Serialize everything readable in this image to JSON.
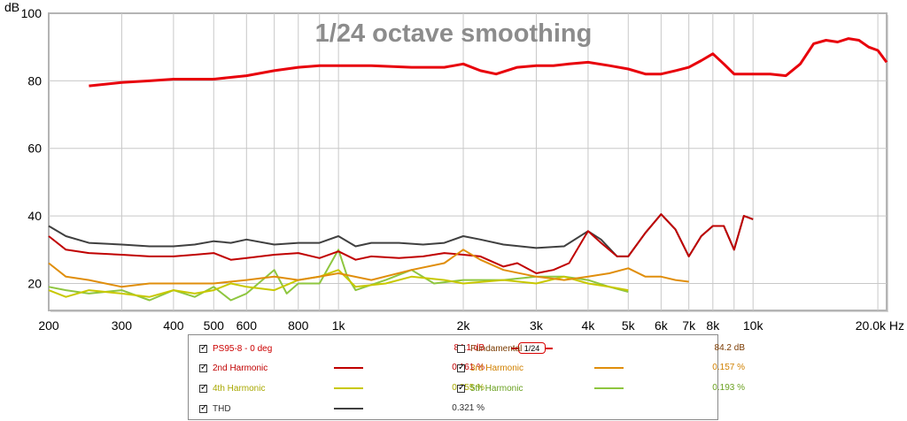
{
  "chart_data": {
    "type": "line",
    "title": "1/24 octave smoothing",
    "ylabel": "dB",
    "xunit": "Hz",
    "xscale": "log",
    "xlim": [
      200,
      21000
    ],
    "ylim": [
      12,
      100
    ],
    "grid": true,
    "yticks": [
      20,
      40,
      60,
      80,
      100
    ],
    "xticks": [
      {
        "v": 200,
        "label": "200"
      },
      {
        "v": 300,
        "label": "300"
      },
      {
        "v": 400,
        "label": "400"
      },
      {
        "v": 500,
        "label": "500"
      },
      {
        "v": 600,
        "label": "600"
      },
      {
        "v": 800,
        "label": "800"
      },
      {
        "v": 1000,
        "label": "1k"
      },
      {
        "v": 2000,
        "label": "2k"
      },
      {
        "v": 3000,
        "label": "3k"
      },
      {
        "v": 4000,
        "label": "4k"
      },
      {
        "v": 5000,
        "label": "5k"
      },
      {
        "v": 6000,
        "label": "6k"
      },
      {
        "v": 7000,
        "label": "7k"
      },
      {
        "v": 8000,
        "label": "8k"
      },
      {
        "v": 10000,
        "label": "10k"
      },
      {
        "v": 20000,
        "label": "20.0k Hz"
      }
    ],
    "series": [
      {
        "name": "PS95-8 - 0 deg",
        "color": "#e8000b",
        "width": 3,
        "points": [
          [
            250,
            78.5
          ],
          [
            300,
            79.5
          ],
          [
            350,
            80
          ],
          [
            400,
            80.5
          ],
          [
            500,
            80.5
          ],
          [
            600,
            81.5
          ],
          [
            700,
            83
          ],
          [
            800,
            84
          ],
          [
            900,
            84.5
          ],
          [
            1000,
            84.5
          ],
          [
            1200,
            84.5
          ],
          [
            1500,
            84
          ],
          [
            1800,
            84
          ],
          [
            2000,
            85
          ],
          [
            2200,
            83
          ],
          [
            2400,
            82
          ],
          [
            2700,
            84
          ],
          [
            3000,
            84.5
          ],
          [
            3300,
            84.5
          ],
          [
            3600,
            85
          ],
          [
            4000,
            85.5
          ],
          [
            4500,
            84.5
          ],
          [
            5000,
            83.5
          ],
          [
            5500,
            82
          ],
          [
            6000,
            82
          ],
          [
            6500,
            83
          ],
          [
            7000,
            84
          ],
          [
            7500,
            86
          ],
          [
            8000,
            88
          ],
          [
            8500,
            85
          ],
          [
            9000,
            82
          ],
          [
            9500,
            82
          ],
          [
            10000,
            82
          ],
          [
            11000,
            82
          ],
          [
            12000,
            81.5
          ],
          [
            13000,
            85
          ],
          [
            14000,
            91
          ],
          [
            15000,
            92
          ],
          [
            16000,
            91.5
          ],
          [
            17000,
            92.5
          ],
          [
            18000,
            92
          ],
          [
            19000,
            90
          ],
          [
            20000,
            89
          ],
          [
            21000,
            85.5
          ]
        ]
      },
      {
        "name": "2nd Harmonic",
        "color": "#c00000",
        "width": 2,
        "points": [
          [
            200,
            34
          ],
          [
            220,
            30
          ],
          [
            250,
            29
          ],
          [
            300,
            28.5
          ],
          [
            350,
            28
          ],
          [
            400,
            28
          ],
          [
            450,
            28.5
          ],
          [
            500,
            29
          ],
          [
            550,
            27
          ],
          [
            600,
            27.5
          ],
          [
            700,
            28.5
          ],
          [
            800,
            29
          ],
          [
            900,
            27.5
          ],
          [
            1000,
            29.5
          ],
          [
            1100,
            27
          ],
          [
            1200,
            28
          ],
          [
            1400,
            27.5
          ],
          [
            1600,
            28
          ],
          [
            1800,
            29
          ],
          [
            2000,
            28.5
          ],
          [
            2200,
            28
          ],
          [
            2500,
            25
          ],
          [
            2700,
            26
          ],
          [
            3000,
            23
          ],
          [
            3300,
            24
          ],
          [
            3600,
            26
          ],
          [
            4000,
            35.5
          ],
          [
            4300,
            32
          ],
          [
            4700,
            28
          ],
          [
            5000,
            28
          ],
          [
            5500,
            35
          ],
          [
            6000,
            40.5
          ],
          [
            6500,
            36
          ],
          [
            7000,
            28
          ],
          [
            7500,
            34
          ],
          [
            8000,
            37
          ],
          [
            8500,
            37
          ],
          [
            9000,
            30
          ],
          [
            9500,
            40
          ],
          [
            10000,
            39
          ]
        ]
      },
      {
        "name": "3rd Harmonic",
        "color": "#e08e0b",
        "width": 2,
        "points": [
          [
            200,
            26
          ],
          [
            220,
            22
          ],
          [
            250,
            21
          ],
          [
            300,
            19
          ],
          [
            350,
            20
          ],
          [
            400,
            20
          ],
          [
            500,
            20
          ],
          [
            600,
            21
          ],
          [
            700,
            22
          ],
          [
            800,
            21
          ],
          [
            900,
            22
          ],
          [
            1000,
            23
          ],
          [
            1200,
            21
          ],
          [
            1500,
            24
          ],
          [
            1800,
            26
          ],
          [
            2000,
            30
          ],
          [
            2200,
            27
          ],
          [
            2500,
            24
          ],
          [
            3000,
            22
          ],
          [
            3500,
            21
          ],
          [
            4000,
            22
          ],
          [
            4500,
            23
          ],
          [
            5000,
            24.5
          ],
          [
            5500,
            22
          ],
          [
            6000,
            22
          ],
          [
            6500,
            21
          ],
          [
            7000,
            20.5
          ]
        ]
      },
      {
        "name": "4th Harmonic",
        "color": "#c8c800",
        "width": 2,
        "points": [
          [
            200,
            18
          ],
          [
            220,
            16
          ],
          [
            250,
            18
          ],
          [
            300,
            17
          ],
          [
            350,
            16
          ],
          [
            400,
            18
          ],
          [
            450,
            17
          ],
          [
            500,
            18
          ],
          [
            550,
            20
          ],
          [
            600,
            19
          ],
          [
            700,
            18
          ],
          [
            800,
            21
          ],
          [
            900,
            22
          ],
          [
            1000,
            24
          ],
          [
            1100,
            19
          ],
          [
            1300,
            20
          ],
          [
            1500,
            22
          ],
          [
            1800,
            21
          ],
          [
            2000,
            20
          ],
          [
            2500,
            21
          ],
          [
            3000,
            20
          ],
          [
            3500,
            22
          ],
          [
            4000,
            20
          ],
          [
            4500,
            19
          ],
          [
            5000,
            18
          ]
        ]
      },
      {
        "name": "5th Harmonic",
        "color": "#8ec63f",
        "width": 2,
        "points": [
          [
            200,
            19
          ],
          [
            220,
            18
          ],
          [
            250,
            17
          ],
          [
            300,
            18
          ],
          [
            350,
            15
          ],
          [
            400,
            18
          ],
          [
            450,
            16
          ],
          [
            500,
            19
          ],
          [
            550,
            15
          ],
          [
            600,
            17
          ],
          [
            700,
            24
          ],
          [
            750,
            17
          ],
          [
            800,
            20
          ],
          [
            900,
            20
          ],
          [
            1000,
            30
          ],
          [
            1050,
            22
          ],
          [
            1100,
            18
          ],
          [
            1300,
            21
          ],
          [
            1500,
            24
          ],
          [
            1700,
            20
          ],
          [
            2000,
            21
          ],
          [
            2500,
            21
          ],
          [
            3000,
            22
          ],
          [
            3500,
            22
          ],
          [
            4000,
            21
          ],
          [
            4500,
            19
          ],
          [
            5000,
            17.5
          ]
        ]
      },
      {
        "name": "THD",
        "color": "#404040",
        "width": 2,
        "points": [
          [
            200,
            37
          ],
          [
            220,
            34
          ],
          [
            250,
            32
          ],
          [
            300,
            31.5
          ],
          [
            350,
            31
          ],
          [
            400,
            31
          ],
          [
            450,
            31.5
          ],
          [
            500,
            32.5
          ],
          [
            550,
            32
          ],
          [
            600,
            33
          ],
          [
            700,
            31.5
          ],
          [
            800,
            32
          ],
          [
            900,
            32
          ],
          [
            1000,
            34
          ],
          [
            1100,
            31
          ],
          [
            1200,
            32
          ],
          [
            1400,
            32
          ],
          [
            1600,
            31.5
          ],
          [
            1800,
            32
          ],
          [
            2000,
            34
          ],
          [
            2200,
            33
          ],
          [
            2500,
            31.5
          ],
          [
            3000,
            30.5
          ],
          [
            3500,
            31
          ],
          [
            4000,
            35.5
          ],
          [
            4300,
            33
          ],
          [
            4700,
            28
          ],
          [
            5000,
            28
          ],
          [
            5500,
            35
          ],
          [
            6000,
            40.5
          ],
          [
            6500,
            36
          ],
          [
            7000,
            28
          ],
          [
            7500,
            34
          ],
          [
            8000,
            37
          ],
          [
            8500,
            37
          ],
          [
            9000,
            30
          ],
          [
            9500,
            40
          ],
          [
            10000,
            39
          ]
        ]
      }
    ]
  },
  "legend": {
    "rows": [
      {
        "label": "PS95-8 - 0 deg",
        "checked": true,
        "label_color": "#cc0000",
        "value": "84.1 dB",
        "value_color": "#cc0000",
        "smoothing": "1/24"
      },
      {
        "label": "Fundamental",
        "checked": false,
        "label_color": "#7a3a00",
        "value": "84.2 dB",
        "value_color": "#7a3a00"
      },
      {
        "label": "2nd Harmonic",
        "checked": true,
        "label_color": "#c00000",
        "value": "0.161 %",
        "value_color": "#c00000",
        "line": "#c00000"
      },
      {
        "label": "3rd Harmonic",
        "checked": true,
        "label_color": "#d08000",
        "value": "0.157 %",
        "value_color": "#d08000",
        "line": "#e08e0b"
      },
      {
        "label": "4th Harmonic",
        "checked": true,
        "label_color": "#a8a800",
        "value": "0.055 %",
        "value_color": "#a8a800",
        "line": "#c8c800"
      },
      {
        "label": "5th Harmonic",
        "checked": true,
        "label_color": "#6aa020",
        "value": "0.193 %",
        "value_color": "#6aa020",
        "line": "#8ec63f"
      },
      {
        "label": "THD",
        "checked": true,
        "label_color": "#303030",
        "value": "0.321 %",
        "value_color": "#303030",
        "line": "#404040"
      }
    ]
  }
}
